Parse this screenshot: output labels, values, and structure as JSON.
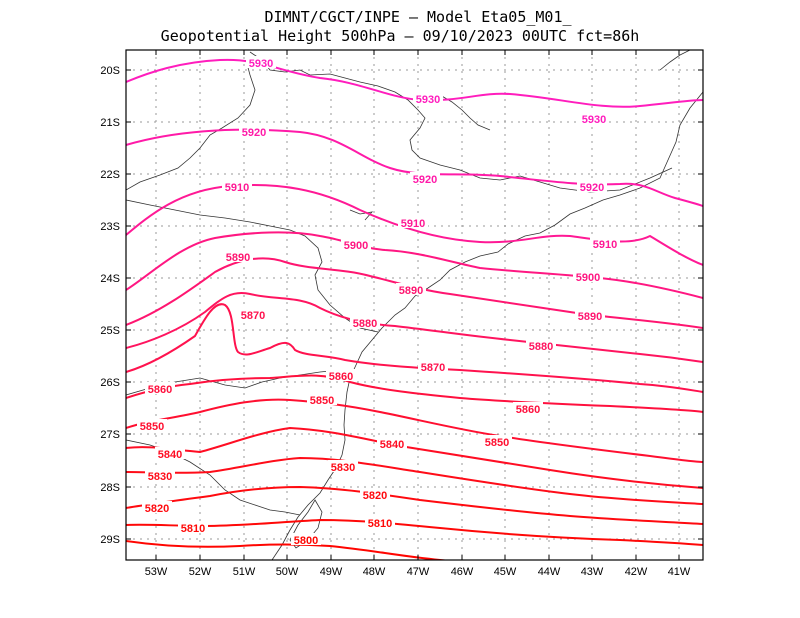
{
  "header": {
    "line1": "DIMNT/CGCT/INPE –  Model Eta05_M01_",
    "line2": "Geopotential Height 500hPa –  09/10/2023 00UTC fct=86h"
  },
  "map": {
    "lon_labels": [
      "53W",
      "52W",
      "51W",
      "50W",
      "49W",
      "48W",
      "47W",
      "46W",
      "45W",
      "44W",
      "43W",
      "42W",
      "41W"
    ],
    "lat_labels": [
      "20S",
      "21S",
      "22S",
      "23S",
      "24S",
      "25S",
      "26S",
      "27S",
      "28S",
      "29S"
    ],
    "colors": {
      "frame": "#000000",
      "grid": "#9a9a9a",
      "coast": "#333333"
    }
  },
  "contours": [
    {
      "value": "5930",
      "color": "#ff1dbd"
    },
    {
      "value": "5920",
      "color": "#ff1aa8"
    },
    {
      "value": "5910",
      "color": "#ff1995"
    },
    {
      "value": "5900",
      "color": "#ff1782"
    },
    {
      "value": "5890",
      "color": "#ff1570"
    },
    {
      "value": "5880",
      "color": "#ff145f"
    },
    {
      "value": "5870",
      "color": "#ff124e"
    },
    {
      "value": "5860",
      "color": "#ff103e"
    },
    {
      "value": "5850",
      "color": "#ff0f30"
    },
    {
      "value": "5840",
      "color": "#ff0d23"
    },
    {
      "value": "5830",
      "color": "#ff0c18"
    },
    {
      "value": "5820",
      "color": "#ff0a0f"
    },
    {
      "value": "5810",
      "color": "#ff0807"
    },
    {
      "value": "5800",
      "color": "#ff0500"
    }
  ]
}
